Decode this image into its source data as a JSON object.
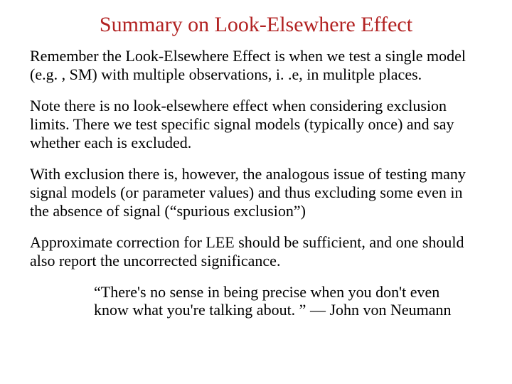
{
  "title": {
    "text": "Summary on Look-Elsewhere Effect",
    "color": "#b22222",
    "fontsize": 30
  },
  "body": {
    "fontsize": 22,
    "color": "#000000",
    "paragraphs": [
      "Remember the Look-Elsewhere Effect is when we test a single model (e.g. , SM) with multiple observations, i. .e, in mulitple places.",
      "Note there is no look-elsewhere effect when considering exclusion limits.   There we test specific signal models (typically once) and say whether each is excluded.",
      "With exclusion there is, however, the analogous issue of testing many signal models (or parameter values) and thus excluding some even in the absence of signal (“spurious exclusion”)",
      "Approximate correction for LEE should be sufficient, and one should also report the uncorrected significance."
    ]
  },
  "quote": {
    "text": "“There's no sense in being precise when you don't even know what you're talking about. ” —  John von Neumann",
    "fontsize": 22
  },
  "background_color": "#ffffff"
}
